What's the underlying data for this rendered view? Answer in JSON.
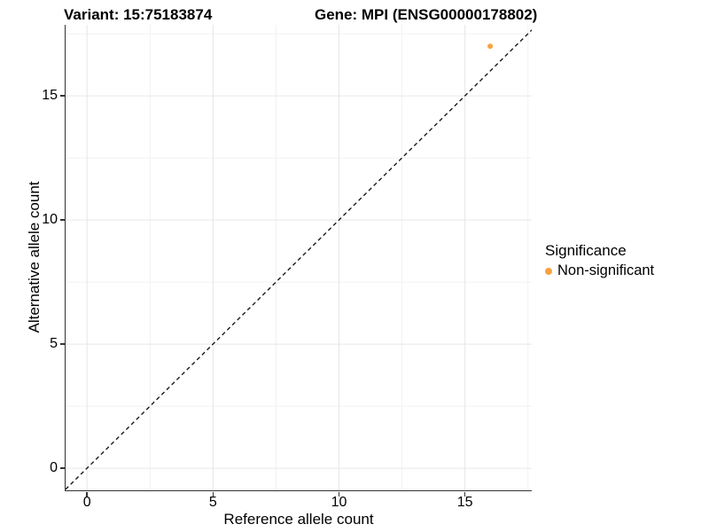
{
  "header": {
    "title_left": "Variant: 15:75183874",
    "title_right": "Gene: MPI (ENSG00000178802)"
  },
  "chart_data": {
    "type": "scatter",
    "xlabel": "Reference allele count",
    "ylabel": "Alternative allele count",
    "xlim": [
      -0.85,
      17.65
    ],
    "ylim": [
      -0.89,
      17.86
    ],
    "xticks": [
      0,
      5,
      10,
      15
    ],
    "yticks": [
      0,
      5,
      10,
      15
    ],
    "minor_breaks": [
      2.5,
      7.5,
      12.5,
      17.5
    ],
    "grid": true,
    "points": [
      {
        "x": 16,
        "y": 17,
        "series": "Non-significant",
        "color": "#F9A242",
        "radius": 3
      }
    ],
    "identity_line": {
      "style": "dashed",
      "from": [
        -0.85,
        -0.85
      ],
      "to": [
        17.65,
        17.65
      ],
      "color": "#1A1A1A"
    },
    "legend": {
      "title": "Significance",
      "position": "right",
      "entries": [
        {
          "label": "Non-significant",
          "color": "#F9A242"
        }
      ]
    },
    "colors": {
      "grid_major": "#E6E6E6",
      "grid_minor": "#F1F1F1",
      "axis_line": "#333333",
      "text": "#000000",
      "background": "#FFFFFF"
    }
  }
}
